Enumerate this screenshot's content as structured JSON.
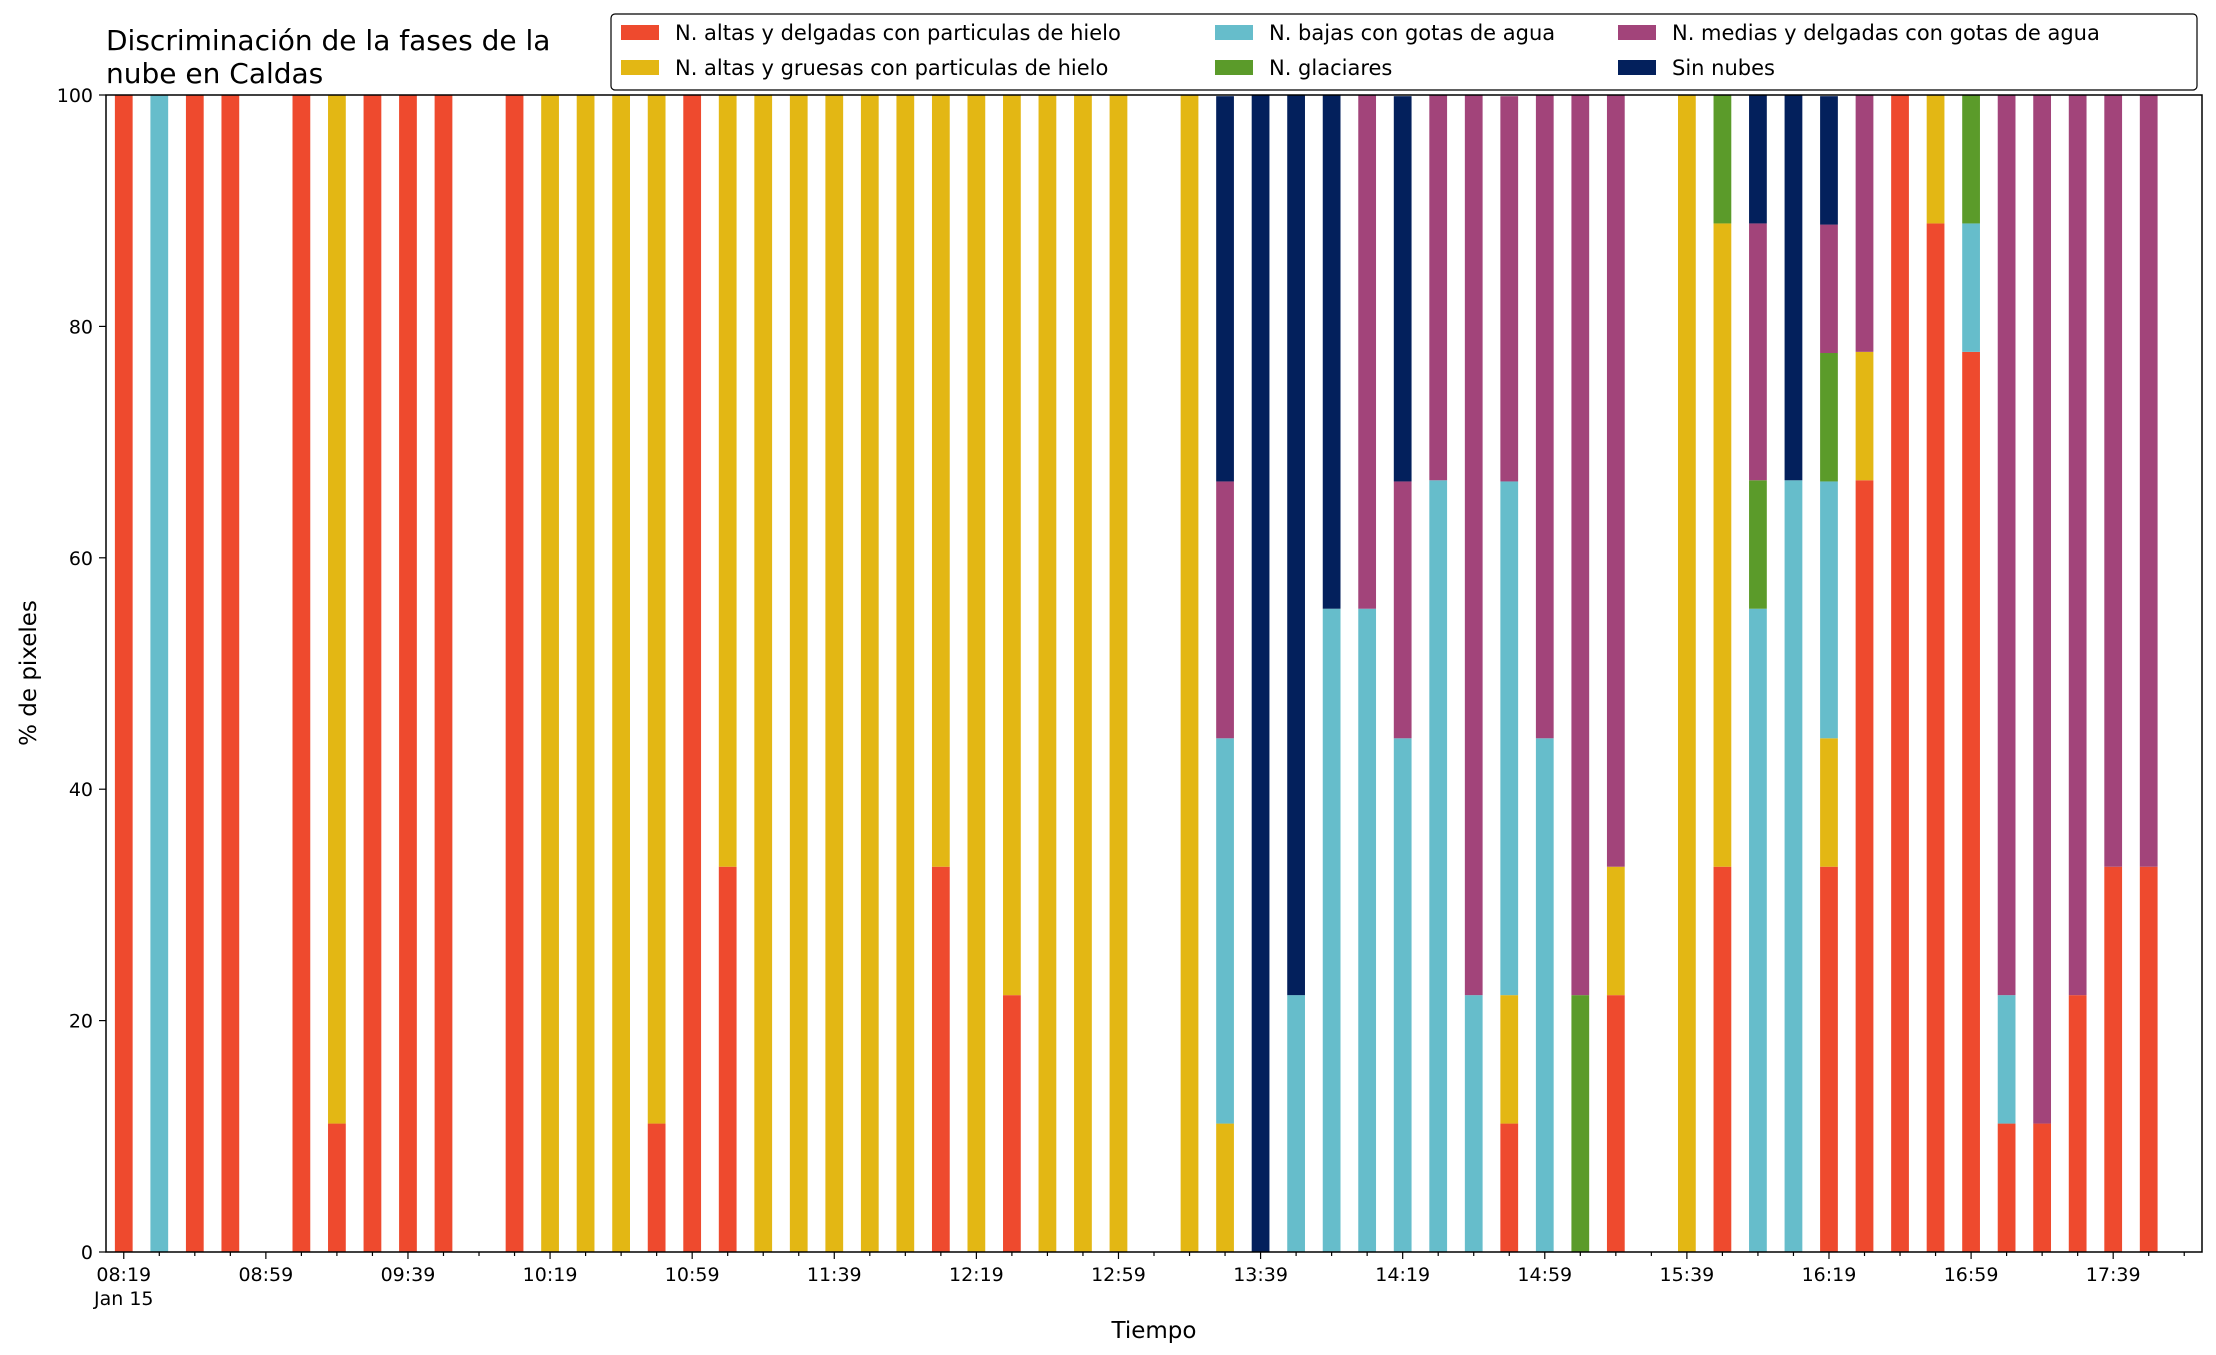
{
  "chart_data": {
    "type": "bar",
    "stacked": true,
    "title_line1": "Discriminación de la fases de la",
    "title_line2": "nube en Caldas",
    "xlabel": "Tiempo",
    "ylabel": "% de pixeles",
    "ylim": [
      0,
      100
    ],
    "yticks": [
      "0",
      "20",
      "40",
      "60",
      "80",
      "100"
    ],
    "xlim": [
      -0.5,
      58.5
    ],
    "xtick_labels": [
      "08:19",
      "08:59",
      "09:39",
      "10:19",
      "10:59",
      "11:39",
      "12:19",
      "12:59",
      "13:39",
      "14:19",
      "14:59",
      "15:39",
      "16:19",
      "16:59",
      "17:39"
    ],
    "xtick_sub": "Jan 15",
    "legend_position": "top-right",
    "grid": false,
    "series": [
      {
        "name": "N. altas y delgadas con particulas de hielo",
        "color": "#ee4a2e"
      },
      {
        "name": "N. altas y gruesas con particulas de hielo",
        "color": "#e3b714"
      },
      {
        "name": "N. bajas con gotas de agua",
        "color": "#66bdcb"
      },
      {
        "name": "N. glaciares",
        "color": "#5b9b2a"
      },
      {
        "name": "N. medias y delgadas con gotas de agua",
        "color": "#a2447a"
      },
      {
        "name": "Sin nubes",
        "color": "#03205c"
      }
    ],
    "bars": [
      {
        "x": 0,
        "v": [
          100,
          0,
          0,
          0,
          0,
          0
        ]
      },
      {
        "x": 1,
        "v": [
          0,
          0,
          100,
          0,
          0,
          0
        ]
      },
      {
        "x": 2,
        "v": [
          100,
          0,
          0,
          0,
          0,
          0
        ]
      },
      {
        "x": 3,
        "v": [
          100,
          0,
          0,
          0,
          0,
          0
        ]
      },
      {
        "x": 5,
        "v": [
          100,
          0,
          0,
          0,
          0,
          0
        ]
      },
      {
        "x": 6,
        "v": [
          11.1,
          88.9,
          0,
          0,
          0,
          0
        ]
      },
      {
        "x": 7,
        "v": [
          100,
          0,
          0,
          0,
          0,
          0
        ]
      },
      {
        "x": 8,
        "v": [
          100,
          0,
          0,
          0,
          0,
          0
        ]
      },
      {
        "x": 9,
        "v": [
          100,
          0,
          0,
          0,
          0,
          0
        ]
      },
      {
        "x": 11,
        "v": [
          100,
          0,
          0,
          0,
          0,
          0
        ]
      },
      {
        "x": 12,
        "v": [
          0,
          100,
          0,
          0,
          0,
          0
        ]
      },
      {
        "x": 13,
        "v": [
          0,
          100,
          0,
          0,
          0,
          0
        ]
      },
      {
        "x": 14,
        "v": [
          0,
          100,
          0,
          0,
          0,
          0
        ]
      },
      {
        "x": 15,
        "v": [
          11.1,
          88.9,
          0,
          0,
          0,
          0
        ]
      },
      {
        "x": 16,
        "v": [
          100,
          0,
          0,
          0,
          0,
          0
        ]
      },
      {
        "x": 17,
        "v": [
          33.3,
          66.7,
          0,
          0,
          0,
          0
        ]
      },
      {
        "x": 18,
        "v": [
          0,
          100,
          0,
          0,
          0,
          0
        ]
      },
      {
        "x": 19,
        "v": [
          0,
          100,
          0,
          0,
          0,
          0
        ]
      },
      {
        "x": 20,
        "v": [
          0,
          100,
          0,
          0,
          0,
          0
        ]
      },
      {
        "x": 21,
        "v": [
          0,
          100,
          0,
          0,
          0,
          0
        ]
      },
      {
        "x": 22,
        "v": [
          0,
          100,
          0,
          0,
          0,
          0
        ]
      },
      {
        "x": 23,
        "v": [
          33.3,
          66.7,
          0,
          0,
          0,
          0
        ]
      },
      {
        "x": 24,
        "v": [
          0,
          100,
          0,
          0,
          0,
          0
        ]
      },
      {
        "x": 25,
        "v": [
          22.2,
          77.8,
          0,
          0,
          0,
          0
        ]
      },
      {
        "x": 26,
        "v": [
          0,
          100,
          0,
          0,
          0,
          0
        ]
      },
      {
        "x": 27,
        "v": [
          0,
          100,
          0,
          0,
          0,
          0
        ]
      },
      {
        "x": 28,
        "v": [
          0,
          100,
          0,
          0,
          0,
          0
        ]
      },
      {
        "x": 30,
        "v": [
          0,
          100,
          0,
          0,
          0,
          0
        ]
      },
      {
        "x": 31,
        "v": [
          0,
          11.1,
          33.3,
          0,
          22.2,
          33.3
        ]
      },
      {
        "x": 32,
        "v": [
          0,
          0,
          0,
          0,
          0,
          100
        ]
      },
      {
        "x": 33,
        "v": [
          0,
          0,
          22.2,
          0,
          0,
          77.8
        ]
      },
      {
        "x": 34,
        "v": [
          0,
          0,
          55.6,
          0,
          0,
          44.4
        ]
      },
      {
        "x": 35,
        "v": [
          0,
          0,
          55.6,
          0,
          44.4,
          0
        ]
      },
      {
        "x": 36,
        "v": [
          0,
          0,
          44.4,
          0,
          22.2,
          33.3
        ]
      },
      {
        "x": 37,
        "v": [
          0,
          0,
          66.7,
          0,
          33.3,
          0
        ]
      },
      {
        "x": 38,
        "v": [
          0,
          0,
          22.2,
          0,
          77.8,
          0
        ]
      },
      {
        "x": 39,
        "v": [
          11.1,
          11.1,
          44.4,
          0,
          33.3,
          0
        ]
      },
      {
        "x": 40,
        "v": [
          0,
          0,
          44.4,
          0,
          55.6,
          0
        ]
      },
      {
        "x": 41,
        "v": [
          0,
          0,
          0,
          22.2,
          77.8,
          0
        ]
      },
      {
        "x": 42,
        "v": [
          22.2,
          11.1,
          0,
          0,
          66.7,
          0
        ]
      },
      {
        "x": 44,
        "v": [
          0,
          100,
          0,
          0,
          0,
          0
        ]
      },
      {
        "x": 45,
        "v": [
          33.3,
          55.6,
          0,
          11.1,
          0,
          0
        ]
      },
      {
        "x": 46,
        "v": [
          0,
          0,
          55.6,
          11.1,
          22.2,
          11.1
        ]
      },
      {
        "x": 47,
        "v": [
          0,
          0,
          66.7,
          0,
          0,
          33.3
        ]
      },
      {
        "x": 48,
        "v": [
          33.3,
          11.1,
          22.2,
          11.1,
          11.1,
          11.1
        ]
      },
      {
        "x": 49,
        "v": [
          66.7,
          11.1,
          0,
          0,
          22.2,
          0
        ]
      },
      {
        "x": 50,
        "v": [
          100,
          0,
          0,
          0,
          0,
          0
        ]
      },
      {
        "x": 51,
        "v": [
          88.9,
          11.1,
          0,
          0,
          0,
          0
        ]
      },
      {
        "x": 52,
        "v": [
          77.8,
          0,
          11.1,
          11.1,
          0,
          0
        ]
      },
      {
        "x": 53,
        "v": [
          11.1,
          0,
          11.1,
          0,
          77.8,
          0
        ]
      },
      {
        "x": 54,
        "v": [
          11.1,
          0,
          0,
          0,
          88.9,
          0
        ]
      },
      {
        "x": 55,
        "v": [
          22.2,
          0,
          0,
          0,
          77.8,
          0
        ]
      },
      {
        "x": 56,
        "v": [
          33.3,
          0,
          0,
          0,
          66.7,
          0
        ]
      },
      {
        "x": 57,
        "v": [
          33.3,
          0,
          0,
          0,
          66.7,
          0
        ]
      }
    ]
  }
}
